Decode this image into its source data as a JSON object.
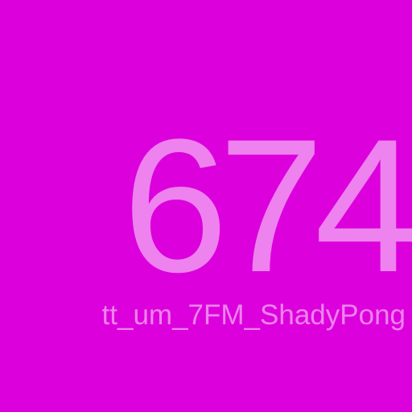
{
  "screen": {
    "value": "674",
    "label": "tt_um_7FM_ShadyPong",
    "background_color": "#dc00dc",
    "text_color": "#ee82ee"
  }
}
